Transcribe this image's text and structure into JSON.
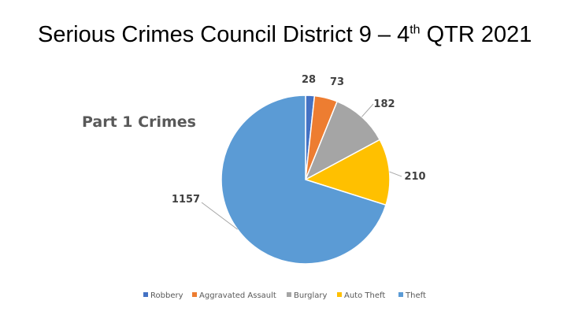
{
  "slide": {
    "title_main": "Serious Crimes Council District 9 – 4",
    "title_sup": "th",
    "title_end": " QTR 2021"
  },
  "chart_data": {
    "type": "pie",
    "title": "Part 1 Crimes",
    "categories": [
      "Robbery",
      "Aggravated Assault",
      "Burglary",
      "Auto Theft",
      "Theft"
    ],
    "values": [
      28,
      73,
      182,
      210,
      1157
    ],
    "colors": [
      "#4472C4",
      "#ED7D31",
      "#A5A5A5",
      "#FFC000",
      "#5B9BD5"
    ],
    "start_angle_deg": 0,
    "direction": "clockwise",
    "legend_position": "bottom",
    "data_labels": true
  }
}
